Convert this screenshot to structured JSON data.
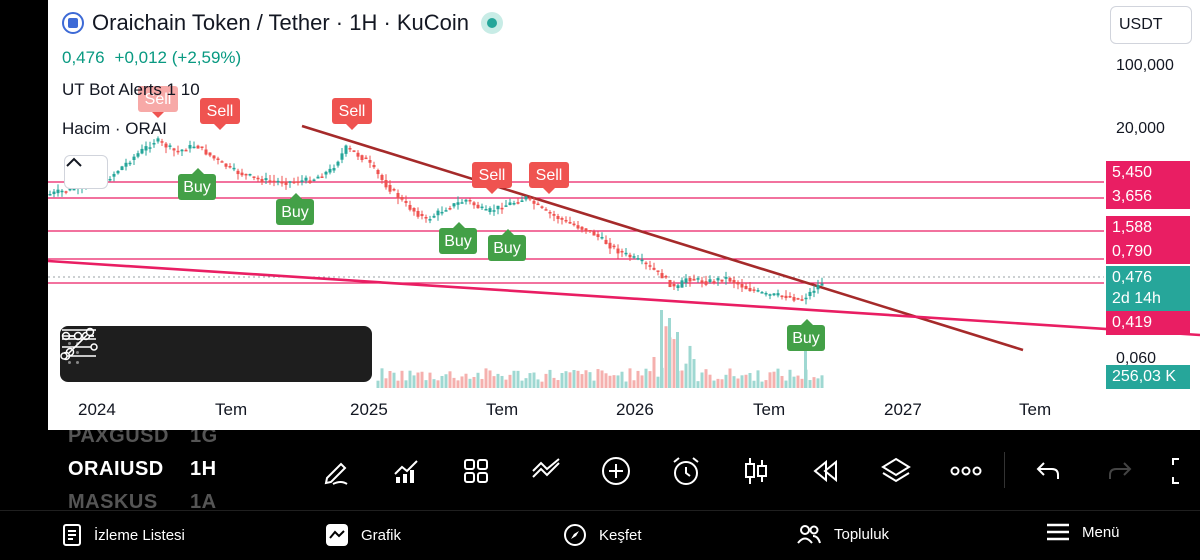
{
  "header": {
    "title": "Oraichain Token / Tether · 1H · KuCoin",
    "price": "0,476",
    "change": "+0,012 (+2,59%)",
    "indicator1": "UT Bot Alerts 1 10",
    "indicator2": "Hacim · ORAI",
    "currency": "USDT"
  },
  "axis": {
    "y_ticks": [
      "100,000",
      "20,000",
      "0,060"
    ],
    "x_ticks": [
      "2024",
      "Tem",
      "2025",
      "Tem",
      "2026",
      "Tem",
      "2027",
      "Tem"
    ]
  },
  "price_tags": [
    {
      "label": "5,450",
      "color": "#e91e63"
    },
    {
      "label": "3,656",
      "color": "#e91e63"
    },
    {
      "label": "1,588",
      "color": "#e91e63"
    },
    {
      "label": "0,790",
      "color": "#e91e63"
    },
    {
      "label": "0,476",
      "color": "#26a69a"
    },
    {
      "label": "2d 14h",
      "color": "#26a69a"
    },
    {
      "label": "0,419",
      "color": "#e91e63"
    },
    {
      "label": "256,03 K",
      "color": "#26a69a"
    }
  ],
  "signals": {
    "sell": [
      "Sell",
      "Sell",
      "Sell",
      "Sell",
      "Sell"
    ],
    "buy": [
      "Buy",
      "Buy",
      "Buy",
      "Buy",
      "Buy"
    ]
  },
  "symbols": {
    "prev": "PAXGUSD",
    "prev_tf": "1G",
    "current": "ORAIUSD",
    "current_tf": "1H",
    "next": "MASKUS",
    "next_tf": "1A"
  },
  "toolbar_icons": [
    "pencil-icon",
    "indicators-icon",
    "layout-icon",
    "compare-icon",
    "add-icon",
    "alarm-icon",
    "candles-icon",
    "replay-icon",
    "layers-icon",
    "more-icon",
    "undo-icon",
    "redo-icon",
    "fullscreen-icon"
  ],
  "nav": {
    "watchlist": "İzleme Listesi",
    "chart": "Grafik",
    "explore": "Keşfet",
    "community": "Topluluk",
    "menu": "Menü"
  },
  "colors": {
    "up": "#26a69a",
    "down": "#ef5350",
    "level": "#e91e63",
    "trend": "#a52a2a"
  }
}
